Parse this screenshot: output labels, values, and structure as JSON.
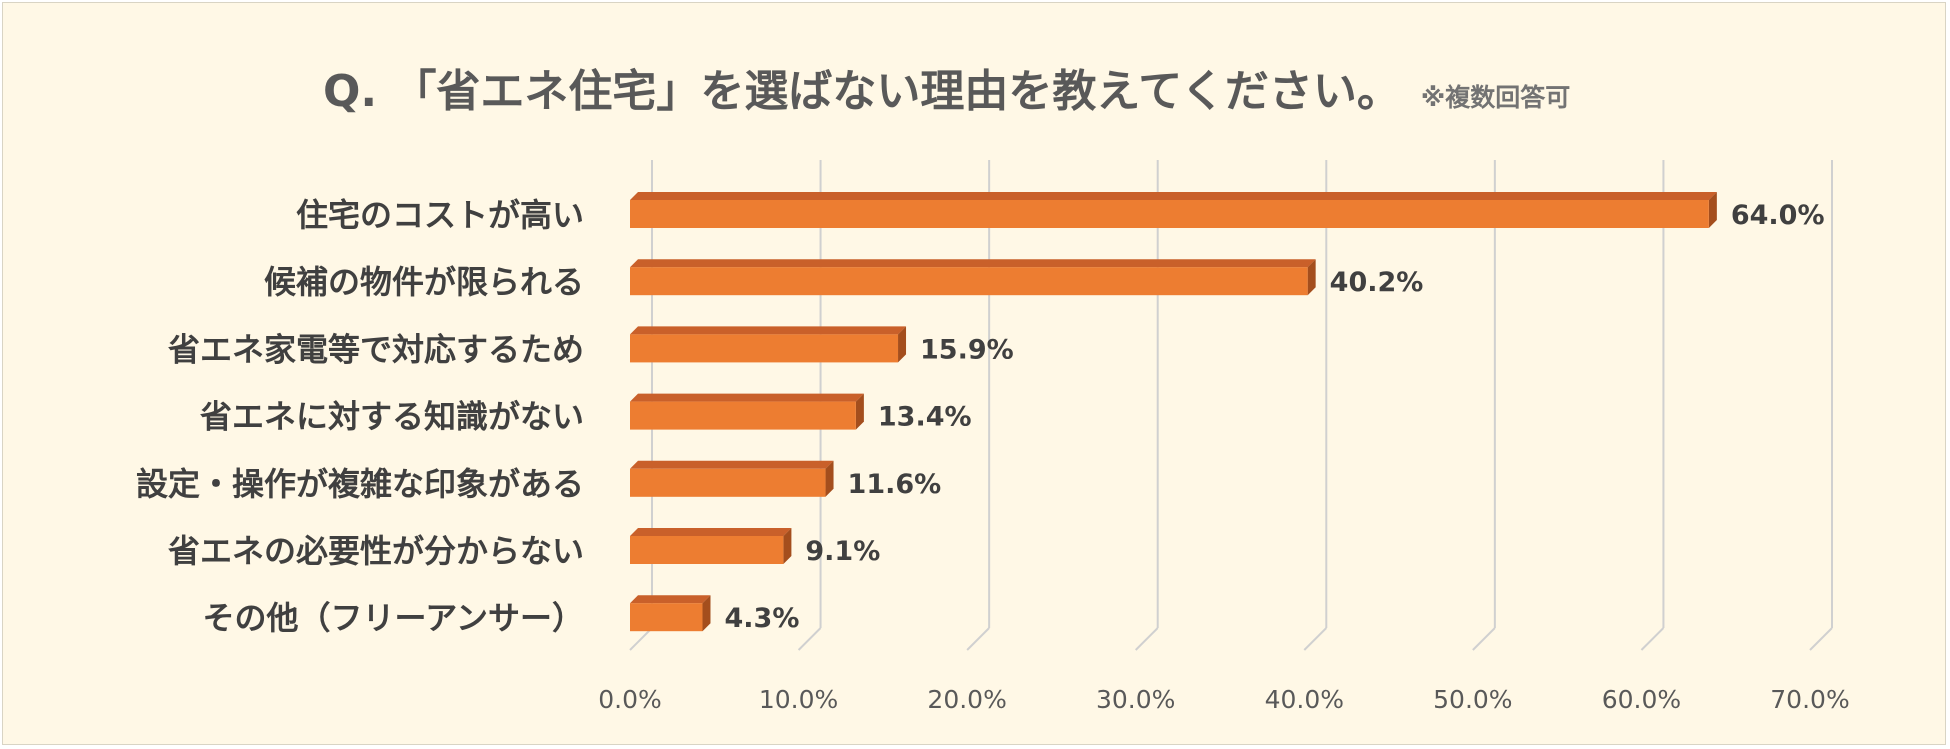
{
  "title": {
    "main": "Q. 「省エネ住宅」を選ばない理由を教えてください。",
    "note": "※複数回答可"
  },
  "colors": {
    "bar_front": "#ed7d31",
    "bar_top": "#c9602a",
    "bar_side": "#a44e1d",
    "grid": "#d0d0d0",
    "background": "#fff8e6"
  },
  "chart_data": {
    "type": "bar",
    "orientation": "horizontal",
    "style": "3d",
    "categories": [
      "住宅のコストが高い",
      "候補の物件が限られる",
      "省エネ家電等で対応するため",
      "省エネに対する知識がない",
      "設定・操作が複雑な印象がある",
      "省エネの必要性が分からない",
      "その他（フリーアンサー）"
    ],
    "values": [
      64.0,
      40.2,
      15.9,
      13.4,
      11.6,
      9.1,
      4.3
    ],
    "value_labels": [
      "64.0%",
      "40.2%",
      "15.9%",
      "13.4%",
      "11.6%",
      "9.1%",
      "4.3%"
    ],
    "xlim": [
      0,
      70
    ],
    "x_ticks": [
      0,
      10,
      20,
      30,
      40,
      50,
      60,
      70
    ],
    "x_tick_labels": [
      "0.0%",
      "10.0%",
      "20.0%",
      "30.0%",
      "40.0%",
      "50.0%",
      "60.0%",
      "70.0%"
    ],
    "grid": true,
    "legend": "none"
  }
}
